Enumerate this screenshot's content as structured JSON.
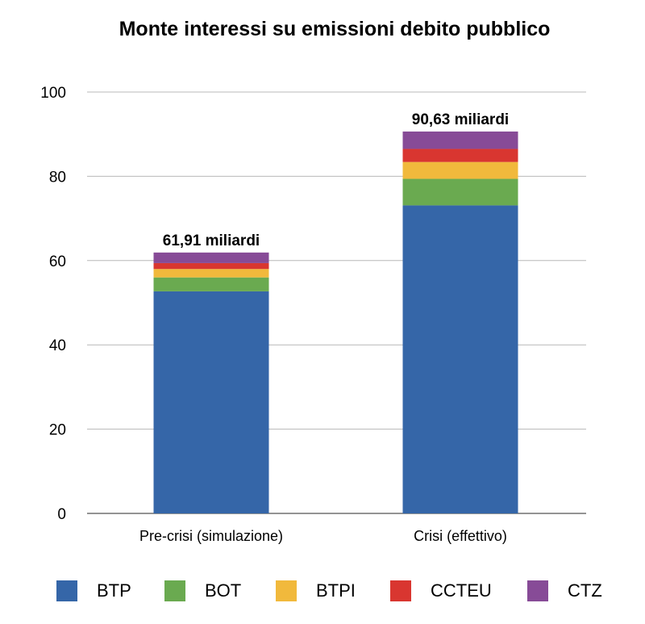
{
  "chart_data": {
    "type": "bar",
    "stacked": true,
    "title": "Monte interessi su emissioni debito pubblico",
    "xlabel": "",
    "ylabel": "",
    "ylim": [
      0,
      100
    ],
    "yticks": [
      0,
      20,
      40,
      60,
      80,
      100
    ],
    "grid": true,
    "legend_position": "bottom",
    "categories": [
      "Pre-crisi (simulazione)",
      "Crisi (effettivo)"
    ],
    "totals_labels": [
      "61,91 miliardi",
      "90,63 miliardi"
    ],
    "series": [
      {
        "name": "BTP",
        "color": "#3566a8",
        "values": [
          52.7,
          73.1
        ]
      },
      {
        "name": "BOT",
        "color": "#6aaa50",
        "values": [
          3.3,
          6.3
        ]
      },
      {
        "name": "BTPI",
        "color": "#f1b93c",
        "values": [
          2.0,
          4.0
        ]
      },
      {
        "name": "CCTEU",
        "color": "#d93630",
        "values": [
          1.4,
          3.1
        ]
      },
      {
        "name": "CTZ",
        "color": "#874b97",
        "values": [
          2.51,
          4.13
        ]
      }
    ]
  }
}
